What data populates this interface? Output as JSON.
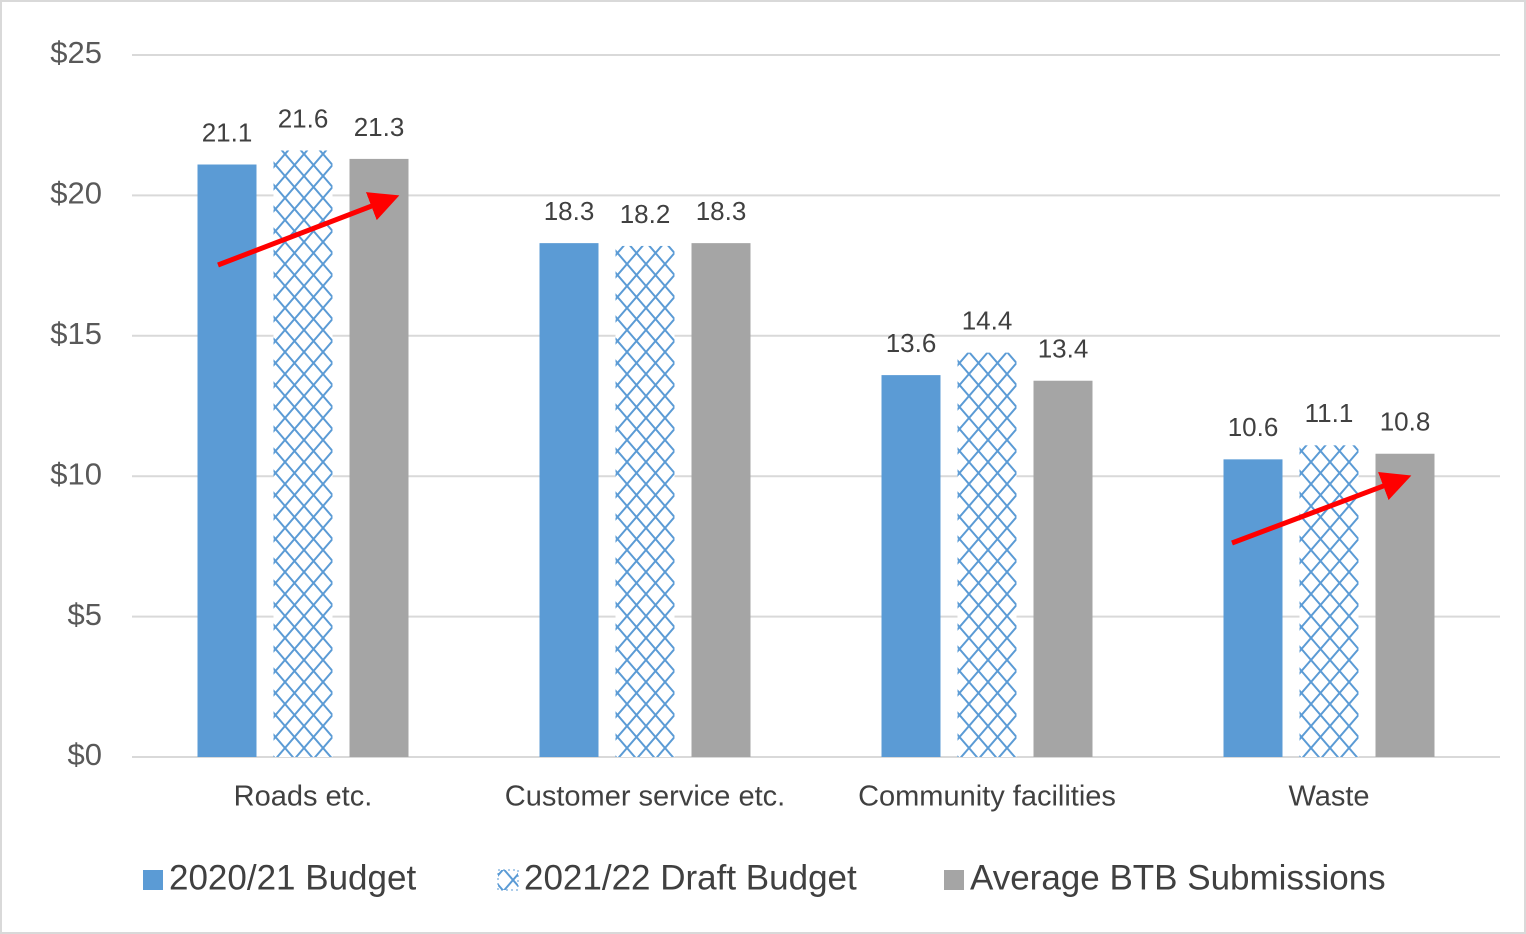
{
  "chart_data": {
    "type": "bar",
    "categories": [
      "Roads etc.",
      "Customer service etc.",
      "Community facilities",
      "Waste"
    ],
    "series": [
      {
        "name": "2020/21 Budget",
        "color": "#5b9bd5",
        "values": [
          21.1,
          18.3,
          13.6,
          10.6
        ]
      },
      {
        "name": "2021/22 Draft Budget",
        "color": "#5b9bd5",
        "pattern": "diamond",
        "values": [
          21.6,
          18.2,
          14.4,
          11.1
        ]
      },
      {
        "name": "Average BTB Submissions",
        "color": "#a5a5a5",
        "values": [
          21.3,
          18.3,
          13.4,
          10.8
        ]
      }
    ],
    "ylim": [
      0,
      25
    ],
    "yticks": [
      {
        "value": 0,
        "label": "$0"
      },
      {
        "value": 5,
        "label": "$5"
      },
      {
        "value": 10,
        "label": "$10"
      },
      {
        "value": 15,
        "label": "$15"
      },
      {
        "value": 20,
        "label": "$20"
      },
      {
        "value": 25,
        "label": "$25"
      }
    ],
    "grid": true,
    "legend": "bottom"
  }
}
